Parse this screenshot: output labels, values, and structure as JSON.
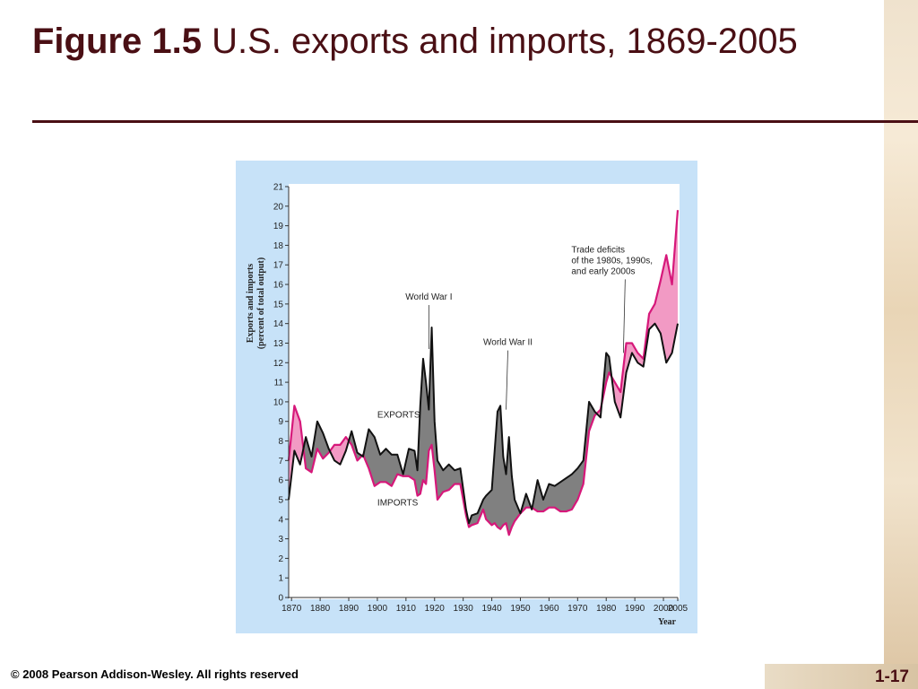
{
  "slide": {
    "title_bold": "Figure 1.5",
    "title_rest": " U.S. exports and imports, 1869-2005",
    "footer": "© 2008 Pearson Addison-Wesley. All rights reserved",
    "page_number": "1-17",
    "accent_color": "#4a0f14"
  },
  "chart_data": {
    "type": "line",
    "xlabel": "Year",
    "ylabel_lines": [
      "Exports and imports",
      "(percent of total output)"
    ],
    "xlim": [
      1869,
      2005
    ],
    "ylim": [
      0,
      21
    ],
    "x_ticks": [
      1870,
      1880,
      1890,
      1900,
      1910,
      1920,
      1930,
      1940,
      1950,
      1960,
      1970,
      1980,
      1990,
      2000,
      2005
    ],
    "y_ticks": [
      0,
      1,
      2,
      3,
      4,
      5,
      6,
      7,
      8,
      9,
      10,
      11,
      12,
      13,
      14,
      15,
      16,
      17,
      18,
      19,
      20,
      21
    ],
    "grid": false,
    "colors": {
      "exports": "#111111",
      "imports": "#d6187a",
      "surplus_fill": "#808080",
      "deficit_fill": "#f29ac4",
      "background": "#c7e2f8"
    },
    "series": [
      {
        "name": "EXPORTS",
        "x": [
          1869,
          1871,
          1873,
          1875,
          1877,
          1879,
          1881,
          1883,
          1885,
          1887,
          1889,
          1891,
          1893,
          1895,
          1897,
          1899,
          1901,
          1903,
          1905,
          1907,
          1909,
          1911,
          1913,
          1914,
          1915,
          1916,
          1917,
          1918,
          1919,
          1920,
          1921,
          1923,
          1925,
          1927,
          1929,
          1931,
          1932,
          1933,
          1935,
          1937,
          1938,
          1940,
          1941,
          1942,
          1943,
          1944,
          1945,
          1946,
          1947,
          1948,
          1950,
          1952,
          1954,
          1956,
          1958,
          1960,
          1962,
          1964,
          1966,
          1968,
          1970,
          1972,
          1974,
          1976,
          1978,
          1980,
          1981,
          1983,
          1985,
          1987,
          1989,
          1991,
          1993,
          1995,
          1997,
          1999,
          2001,
          2003,
          2005
        ],
        "values": [
          5.0,
          7.5,
          6.8,
          8.2,
          7.2,
          9.0,
          8.4,
          7.6,
          7.0,
          6.8,
          7.5,
          8.5,
          7.4,
          7.2,
          8.6,
          8.2,
          7.3,
          7.6,
          7.3,
          7.3,
          6.3,
          7.6,
          7.5,
          6.5,
          9.8,
          12.2,
          11.0,
          9.6,
          13.8,
          9.0,
          7.0,
          6.5,
          6.8,
          6.5,
          6.6,
          4.5,
          3.8,
          4.2,
          4.3,
          5.0,
          5.2,
          5.5,
          7.5,
          9.5,
          9.8,
          7.2,
          6.3,
          8.2,
          6.2,
          5.0,
          4.3,
          5.3,
          4.5,
          6.0,
          5.0,
          5.8,
          5.7,
          5.9,
          6.1,
          6.3,
          6.6,
          7.0,
          10.0,
          9.5,
          9.2,
          12.5,
          12.3,
          10.0,
          9.2,
          11.5,
          12.5,
          12.0,
          11.8,
          13.7,
          14.0,
          13.5,
          12.0,
          12.5,
          14.0
        ]
      },
      {
        "name": "IMPORTS",
        "x": [
          1869,
          1871,
          1873,
          1875,
          1877,
          1879,
          1881,
          1883,
          1885,
          1887,
          1889,
          1891,
          1893,
          1895,
          1897,
          1899,
          1901,
          1903,
          1905,
          1907,
          1909,
          1911,
          1913,
          1914,
          1915,
          1916,
          1917,
          1918,
          1919,
          1920,
          1921,
          1923,
          1925,
          1927,
          1929,
          1931,
          1932,
          1933,
          1935,
          1937,
          1938,
          1940,
          1941,
          1942,
          1943,
          1944,
          1945,
          1946,
          1947,
          1948,
          1950,
          1952,
          1954,
          1956,
          1958,
          1960,
          1962,
          1964,
          1966,
          1968,
          1970,
          1972,
          1974,
          1976,
          1978,
          1980,
          1981,
          1983,
          1985,
          1987,
          1989,
          1991,
          1993,
          1995,
          1997,
          1999,
          2001,
          2003,
          2005
        ],
        "values": [
          7.0,
          9.8,
          9.0,
          6.6,
          6.4,
          7.6,
          7.1,
          7.4,
          7.8,
          7.8,
          8.2,
          7.8,
          7.0,
          7.3,
          6.6,
          5.7,
          5.9,
          5.9,
          5.7,
          6.3,
          6.2,
          6.2,
          6.0,
          5.2,
          5.3,
          6.0,
          5.8,
          7.5,
          7.8,
          6.5,
          5.0,
          5.4,
          5.5,
          5.8,
          5.8,
          4.2,
          3.6,
          3.7,
          3.8,
          4.5,
          4.0,
          3.7,
          3.8,
          3.6,
          3.5,
          3.7,
          3.8,
          3.2,
          3.6,
          3.9,
          4.3,
          4.6,
          4.6,
          4.4,
          4.4,
          4.6,
          4.6,
          4.4,
          4.4,
          4.5,
          5.0,
          5.8,
          8.5,
          9.3,
          9.6,
          11.0,
          11.5,
          11.0,
          10.5,
          13.0,
          13.0,
          12.5,
          12.2,
          14.5,
          15.0,
          16.2,
          17.5,
          16.0,
          19.8
        ]
      }
    ],
    "annotations": [
      {
        "text": "World War I",
        "x": 1918,
        "y": 12.7
      },
      {
        "text": "World War II",
        "x": 1945,
        "y": 9.6
      },
      {
        "text": "Trade deficits\nof the 1980s, 1990s,\nand early 2000s",
        "x": 1986,
        "y": 12.5
      },
      {
        "text": "EXPORTS",
        "x": 1900,
        "y": 9.2
      },
      {
        "text": "IMPORTS",
        "x": 1900,
        "y": 4.7
      }
    ]
  }
}
